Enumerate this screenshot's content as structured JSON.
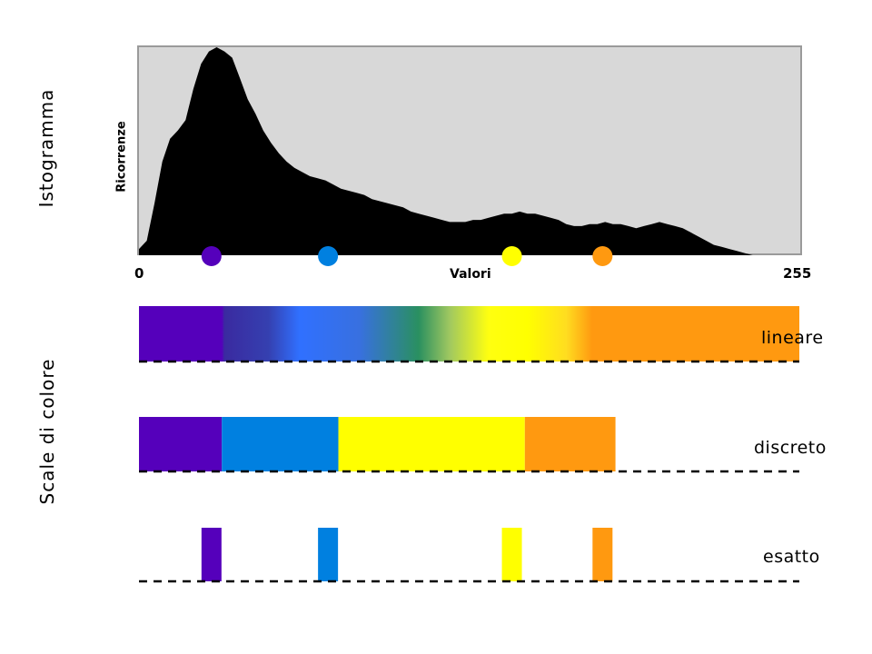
{
  "labels": {
    "histogram_title": "Istogramma",
    "scales_title": "Scale di colore",
    "ylabel": "Ricorrenze",
    "xlabel": "Valori",
    "x_min": "0",
    "x_max": "255"
  },
  "scales": {
    "linear": "lineare",
    "discrete": "discreto",
    "exact": "esatto"
  },
  "colors": {
    "histogram_bg": "#d8d8d8",
    "histogram_fill": "#000000",
    "purple": "#5500bb",
    "blue": "#0080e0",
    "yellow": "#ffff00",
    "orange": "#ff9910"
  },
  "chart_data": {
    "type": "area",
    "x_range": [
      0,
      255
    ],
    "xlabel": "Valori",
    "ylabel": "Ricorrenze",
    "points": [
      [
        0,
        0.03
      ],
      [
        3,
        0.07
      ],
      [
        6,
        0.25
      ],
      [
        9,
        0.45
      ],
      [
        12,
        0.56
      ],
      [
        15,
        0.6
      ],
      [
        18,
        0.65
      ],
      [
        21,
        0.8
      ],
      [
        24,
        0.92
      ],
      [
        27,
        0.98
      ],
      [
        30,
        1.0
      ],
      [
        33,
        0.98
      ],
      [
        36,
        0.95
      ],
      [
        39,
        0.85
      ],
      [
        42,
        0.75
      ],
      [
        45,
        0.68
      ],
      [
        48,
        0.6
      ],
      [
        51,
        0.54
      ],
      [
        54,
        0.49
      ],
      [
        57,
        0.45
      ],
      [
        60,
        0.42
      ],
      [
        63,
        0.4
      ],
      [
        66,
        0.38
      ],
      [
        69,
        0.37
      ],
      [
        72,
        0.36
      ],
      [
        75,
        0.34
      ],
      [
        78,
        0.32
      ],
      [
        81,
        0.31
      ],
      [
        84,
        0.3
      ],
      [
        87,
        0.29
      ],
      [
        90,
        0.27
      ],
      [
        93,
        0.26
      ],
      [
        96,
        0.25
      ],
      [
        99,
        0.24
      ],
      [
        102,
        0.23
      ],
      [
        105,
        0.21
      ],
      [
        108,
        0.2
      ],
      [
        111,
        0.19
      ],
      [
        114,
        0.18
      ],
      [
        117,
        0.17
      ],
      [
        120,
        0.16
      ],
      [
        123,
        0.16
      ],
      [
        126,
        0.16
      ],
      [
        129,
        0.17
      ],
      [
        132,
        0.17
      ],
      [
        135,
        0.18
      ],
      [
        138,
        0.19
      ],
      [
        141,
        0.2
      ],
      [
        144,
        0.2
      ],
      [
        147,
        0.21
      ],
      [
        150,
        0.2
      ],
      [
        153,
        0.2
      ],
      [
        156,
        0.19
      ],
      [
        159,
        0.18
      ],
      [
        162,
        0.17
      ],
      [
        165,
        0.15
      ],
      [
        168,
        0.14
      ],
      [
        171,
        0.14
      ],
      [
        174,
        0.15
      ],
      [
        177,
        0.15
      ],
      [
        180,
        0.16
      ],
      [
        183,
        0.15
      ],
      [
        186,
        0.15
      ],
      [
        189,
        0.14
      ],
      [
        192,
        0.13
      ],
      [
        195,
        0.14
      ],
      [
        198,
        0.15
      ],
      [
        201,
        0.16
      ],
      [
        204,
        0.15
      ],
      [
        207,
        0.14
      ],
      [
        210,
        0.13
      ],
      [
        213,
        0.11
      ],
      [
        216,
        0.09
      ],
      [
        219,
        0.07
      ],
      [
        222,
        0.05
      ],
      [
        225,
        0.04
      ],
      [
        228,
        0.03
      ],
      [
        231,
        0.02
      ],
      [
        234,
        0.01
      ],
      [
        237,
        0.0
      ],
      [
        255,
        0.0
      ]
    ],
    "markers": [
      {
        "value": 28,
        "color": "#5500bb"
      },
      {
        "value": 73,
        "color": "#0080e0"
      },
      {
        "value": 144,
        "color": "#ffff00"
      },
      {
        "value": 179,
        "color": "#ff9910"
      }
    ],
    "linear_stops": [
      {
        "value": 0,
        "color": "#5500bb"
      },
      {
        "value": 32,
        "color": "#5500bb"
      },
      {
        "value": 33,
        "color": "#3a2aa0"
      },
      {
        "value": 50,
        "color": "#3540b0"
      },
      {
        "value": 62,
        "color": "#3070ff"
      },
      {
        "value": 85,
        "color": "#3870e0"
      },
      {
        "value": 108,
        "color": "#2a9060"
      },
      {
        "value": 120,
        "color": "#a0c860"
      },
      {
        "value": 135,
        "color": "#ffff10"
      },
      {
        "value": 150,
        "color": "#ffff00"
      },
      {
        "value": 165,
        "color": "#ffdd20"
      },
      {
        "value": 175,
        "color": "#ff9910"
      },
      {
        "value": 255,
        "color": "#ff9910"
      }
    ],
    "discrete_segments": [
      {
        "from": 0,
        "to": 32,
        "color": "#5500bb"
      },
      {
        "from": 32,
        "to": 77,
        "color": "#0080e0"
      },
      {
        "from": 77,
        "to": 149,
        "color": "#ffff00"
      },
      {
        "from": 149,
        "to": 184,
        "color": "#ff9910"
      }
    ],
    "exact_bars": [
      {
        "value": 28,
        "color": "#5500bb"
      },
      {
        "value": 73,
        "color": "#0080e0"
      },
      {
        "value": 144,
        "color": "#ffff00"
      },
      {
        "value": 179,
        "color": "#ff9910"
      }
    ]
  }
}
